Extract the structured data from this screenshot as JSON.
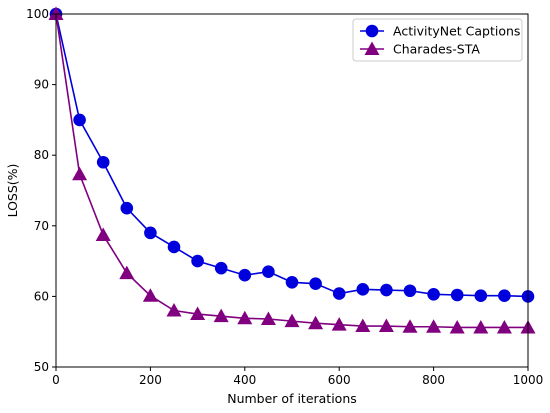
{
  "chart_data": {
    "type": "line",
    "xlabel": "Number of iterations",
    "ylabel": "LOSS(%)",
    "xlim": [
      0,
      1000
    ],
    "ylim": [
      50,
      100
    ],
    "xticks": [
      0,
      200,
      400,
      600,
      800,
      1000
    ],
    "yticks": [
      50,
      60,
      70,
      80,
      90,
      100
    ],
    "grid": false,
    "legend": "top-right",
    "x": [
      0,
      50,
      100,
      150,
      200,
      250,
      300,
      350,
      400,
      450,
      500,
      550,
      600,
      650,
      700,
      750,
      800,
      850,
      900,
      950,
      1000
    ],
    "series": [
      {
        "name": "ActivityNet Captions",
        "color": "#0000dd",
        "marker": "circle",
        "values": [
          100,
          85,
          79,
          72.5,
          69,
          67,
          65,
          64,
          63,
          63.5,
          62,
          61.8,
          60.4,
          61,
          60.9,
          60.8,
          60.3,
          60.2,
          60.1,
          60.1,
          60
        ]
      },
      {
        "name": "Charades-STA",
        "color": "#800080",
        "marker": "triangle",
        "values": [
          100,
          77.3,
          68.7,
          63.3,
          60.1,
          58,
          57.5,
          57.2,
          56.9,
          56.8,
          56.5,
          56.2,
          56,
          55.8,
          55.8,
          55.7,
          55.7,
          55.6,
          55.6,
          55.6,
          55.6
        ]
      }
    ]
  }
}
